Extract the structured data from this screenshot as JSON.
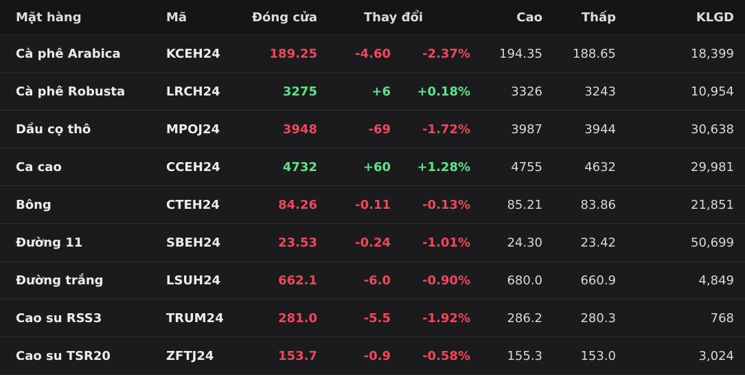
{
  "headers": {
    "name": "Mặt hàng",
    "code": "Mã",
    "close": "Đóng cửa",
    "change": "Thay đổi",
    "high": "Cao",
    "low": "Thấp",
    "volume": "KLGD"
  },
  "colors": {
    "down": "#f0475c",
    "up": "#5fe38a"
  },
  "rows": [
    {
      "name": "Cà phê Arabica",
      "code": "KCEH24",
      "close": "189.25",
      "change": "-4.60",
      "pct": "-2.37%",
      "high": "194.35",
      "low": "188.65",
      "volume": "18,399",
      "direction": "down"
    },
    {
      "name": "Cà phê Robusta",
      "code": "LRCH24",
      "close": "3275",
      "change": "+6",
      "pct": "+0.18%",
      "high": "3326",
      "low": "3243",
      "volume": "10,954",
      "direction": "up"
    },
    {
      "name": "Dầu cọ thô",
      "code": "MPOJ24",
      "close": "3948",
      "change": "-69",
      "pct": "-1.72%",
      "high": "3987",
      "low": "3944",
      "volume": "30,638",
      "direction": "down"
    },
    {
      "name": "Ca cao",
      "code": "CCEH24",
      "close": "4732",
      "change": "+60",
      "pct": "+1.28%",
      "high": "4755",
      "low": "4632",
      "volume": "29,981",
      "direction": "up"
    },
    {
      "name": "Bông",
      "code": "CTEH24",
      "close": "84.26",
      "change": "-0.11",
      "pct": "-0.13%",
      "high": "85.21",
      "low": "83.86",
      "volume": "21,851",
      "direction": "down"
    },
    {
      "name": "Đường 11",
      "code": "SBEH24",
      "close": "23.53",
      "change": "-0.24",
      "pct": "-1.01%",
      "high": "24.30",
      "low": "23.42",
      "volume": "50,699",
      "direction": "down"
    },
    {
      "name": "Đường trắng",
      "code": "LSUH24",
      "close": "662.1",
      "change": "-6.0",
      "pct": "-0.90%",
      "high": "680.0",
      "low": "660.9",
      "volume": "4,849",
      "direction": "down"
    },
    {
      "name": "Cao su RSS3",
      "code": "TRUM24",
      "close": "281.0",
      "change": "-5.5",
      "pct": "-1.92%",
      "high": "286.2",
      "low": "280.3",
      "volume": "768",
      "direction": "down"
    },
    {
      "name": "Cao su TSR20",
      "code": "ZFTJ24",
      "close": "153.7",
      "change": "-0.9",
      "pct": "-0.58%",
      "high": "155.3",
      "low": "153.0",
      "volume": "3,024",
      "direction": "down"
    }
  ]
}
